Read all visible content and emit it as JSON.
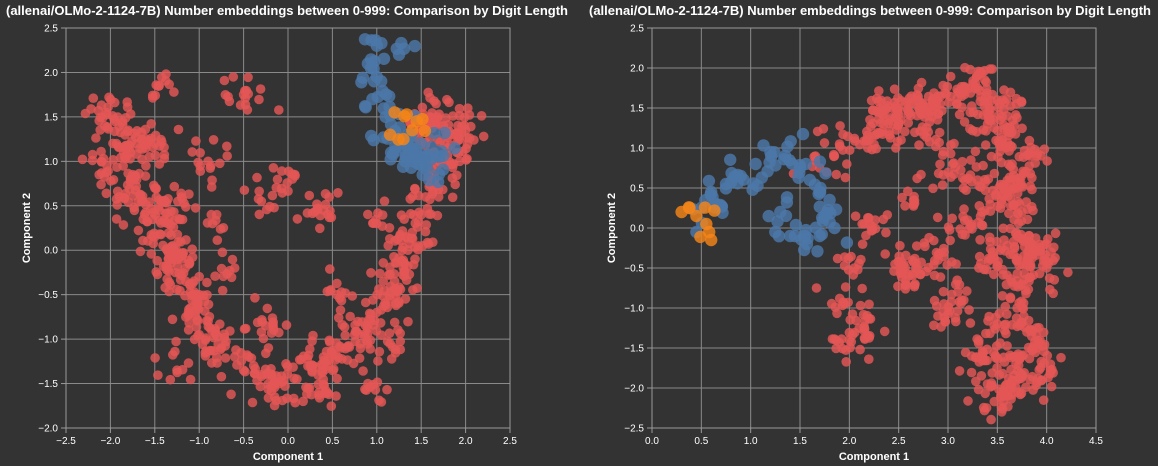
{
  "chart_data": [
    {
      "type": "scatter",
      "title": "(allenai/OLMo-2-1124-7B) Number embeddings between 0-999: Comparison by Digit Length",
      "xlabel": "Component 1",
      "ylabel": "Component 2",
      "xlim": [
        -2.5,
        2.5
      ],
      "ylim": [
        -2.0,
        2.5
      ],
      "xticks": [
        "−2.5",
        "−2.0",
        "−1.5",
        "−1.0",
        "−0.5",
        "0.0",
        "0.5",
        "1.0",
        "1.5",
        "2.0",
        "2.5"
      ],
      "yticks": [
        "−2.0",
        "−1.5",
        "−1.0",
        "−0.5",
        "0.0",
        "0.5",
        "1.0",
        "1.5",
        "2.0",
        "2.5"
      ],
      "grid": true,
      "series": [
        {
          "color": "#e45756",
          "count": 900,
          "points": [
            [
              -2.05,
              1.55
            ],
            [
              -1.95,
              1.45
            ],
            [
              -1.8,
              1.35
            ],
            [
              -1.7,
              1.2
            ],
            [
              -1.85,
              1.1
            ],
            [
              -1.6,
              0.95
            ],
            [
              -1.75,
              0.85
            ],
            [
              -1.5,
              0.7
            ],
            [
              -1.65,
              0.55
            ],
            [
              -1.45,
              0.45
            ],
            [
              -1.35,
              0.3
            ],
            [
              -1.5,
              0.15
            ],
            [
              -1.3,
              0.05
            ],
            [
              -1.2,
              -0.1
            ],
            [
              -1.35,
              -0.2
            ],
            [
              -1.15,
              -0.35
            ],
            [
              -1.0,
              -0.5
            ],
            [
              -1.1,
              -0.65
            ],
            [
              -0.9,
              -0.8
            ],
            [
              -1.0,
              -0.95
            ],
            [
              -0.75,
              -1.1
            ],
            [
              -0.6,
              -1.2
            ],
            [
              -0.5,
              -1.35
            ],
            [
              -0.3,
              -1.4
            ],
            [
              -0.1,
              -1.5
            ],
            [
              0.1,
              -1.45
            ],
            [
              0.25,
              -1.3
            ],
            [
              0.4,
              -1.2
            ],
            [
              0.6,
              -1.1
            ],
            [
              0.75,
              -0.95
            ],
            [
              0.9,
              -0.85
            ],
            [
              1.0,
              -0.7
            ],
            [
              1.15,
              -0.55
            ],
            [
              1.2,
              -0.35
            ],
            [
              1.3,
              -0.2
            ],
            [
              1.35,
              0.0
            ],
            [
              1.4,
              0.2
            ],
            [
              1.5,
              0.4
            ],
            [
              1.55,
              0.6
            ],
            [
              1.65,
              0.8
            ],
            [
              1.7,
              1.0
            ],
            [
              1.8,
              1.15
            ],
            [
              1.85,
              1.3
            ],
            [
              1.75,
              1.4
            ],
            [
              1.6,
              1.5
            ],
            [
              1.5,
              1.35
            ],
            [
              0.05,
              0.8
            ],
            [
              -0.3,
              0.55
            ],
            [
              -0.5,
              1.75
            ],
            [
              -1.45,
              1.85
            ],
            [
              -1.5,
              1.2
            ],
            [
              -0.9,
              1.0
            ],
            [
              0.4,
              0.45
            ],
            [
              -0.25,
              -0.85
            ],
            [
              0.55,
              -0.5
            ],
            [
              1.15,
              -1.05
            ],
            [
              -0.6,
              -0.2
            ],
            [
              -1.25,
              -1.35
            ],
            [
              0.9,
              -1.5
            ],
            [
              -0.85,
              0.3
            ],
            [
              1.0,
              0.3
            ],
            [
              2.0,
              1.35
            ],
            [
              1.9,
              1.1
            ],
            [
              -2.1,
              1.0
            ],
            [
              -1.9,
              0.6
            ],
            [
              -1.2,
              0.6
            ],
            [
              -0.15,
              -1.65
            ],
            [
              0.35,
              -1.6
            ]
          ]
        },
        {
          "color": "#4c78a8",
          "count": 90,
          "points": [
            [
              1.0,
              2.3
            ],
            [
              0.9,
              2.1
            ],
            [
              1.05,
              1.9
            ],
            [
              0.95,
              1.7
            ],
            [
              1.1,
              1.5
            ],
            [
              1.2,
              1.3
            ],
            [
              1.3,
              1.15
            ],
            [
              1.4,
              1.0
            ],
            [
              1.55,
              0.95
            ],
            [
              1.5,
              1.2
            ],
            [
              1.35,
              1.3
            ],
            [
              1.7,
              1.05
            ],
            [
              1.25,
              2.2
            ]
          ]
        },
        {
          "color": "#f58518",
          "count": 10,
          "points": [
            [
              1.15,
              1.3
            ],
            [
              1.3,
              1.25
            ],
            [
              1.4,
              1.35
            ],
            [
              1.45,
              1.45
            ],
            [
              1.2,
              1.55
            ]
          ]
        }
      ]
    },
    {
      "type": "scatter",
      "title": "(allenai/OLMo-2-1124-7B) Number embeddings between 0-999: Comparison by Digit Length",
      "xlabel": "Component 1",
      "ylabel": "Component 2",
      "xlim": [
        0.0,
        4.5
      ],
      "ylim": [
        -2.5,
        2.5
      ],
      "xticks": [
        "0.0",
        "0.5",
        "1.0",
        "1.5",
        "2.0",
        "2.5",
        "3.0",
        "3.5",
        "4.0",
        "4.5"
      ],
      "yticks": [
        "−2.5",
        "−2.0",
        "−1.5",
        "−1.0",
        "−0.5",
        "0.0",
        "0.5",
        "1.0",
        "1.5",
        "2.0",
        "2.5"
      ],
      "grid": true,
      "series": [
        {
          "color": "#e45756",
          "count": 900,
          "points": [
            [
              2.35,
              1.3
            ],
            [
              2.5,
              1.5
            ],
            [
              2.7,
              1.6
            ],
            [
              2.9,
              1.65
            ],
            [
              3.1,
              1.7
            ],
            [
              3.3,
              1.75
            ],
            [
              3.5,
              1.6
            ],
            [
              3.6,
              1.4
            ],
            [
              3.55,
              1.1
            ],
            [
              3.65,
              0.8
            ],
            [
              3.7,
              0.5
            ],
            [
              3.75,
              0.2
            ],
            [
              3.7,
              -0.1
            ],
            [
              3.8,
              -0.4
            ],
            [
              3.75,
              -0.7
            ],
            [
              3.7,
              -1.0
            ],
            [
              3.8,
              -1.3
            ],
            [
              3.75,
              -1.6
            ],
            [
              3.7,
              -1.9
            ],
            [
              3.6,
              -2.1
            ],
            [
              3.9,
              -1.5
            ],
            [
              3.85,
              -0.2
            ],
            [
              3.55,
              0.4
            ],
            [
              3.4,
              1.3
            ],
            [
              2.8,
              1.2
            ],
            [
              2.2,
              1.1
            ],
            [
              1.9,
              1.05
            ],
            [
              1.7,
              0.75
            ],
            [
              2.05,
              -0.5
            ],
            [
              2.1,
              -1.25
            ],
            [
              2.0,
              -1.4
            ],
            [
              1.95,
              -0.95
            ],
            [
              2.6,
              -0.6
            ],
            [
              2.9,
              -0.4
            ],
            [
              3.1,
              -0.8
            ],
            [
              3.2,
              0.1
            ],
            [
              3.05,
              0.8
            ],
            [
              2.65,
              0.35
            ],
            [
              3.35,
              -1.6
            ],
            [
              3.4,
              -1.95
            ],
            [
              3.45,
              -0.3
            ],
            [
              3.3,
              0.6
            ],
            [
              3.9,
              0.9
            ],
            [
              4.0,
              -0.5
            ],
            [
              3.95,
              -1.9
            ],
            [
              3.5,
              -1.2
            ],
            [
              2.55,
              -0.45
            ],
            [
              2.95,
              -1.05
            ],
            [
              2.15,
              0.05
            ],
            [
              2.4,
              1.35
            ],
            [
              2.75,
              1.5
            ]
          ]
        },
        {
          "color": "#4c78a8",
          "count": 90,
          "points": [
            [
              0.5,
              0.25
            ],
            [
              0.6,
              0.45
            ],
            [
              0.75,
              0.55
            ],
            [
              0.9,
              0.65
            ],
            [
              1.05,
              0.8
            ],
            [
              1.2,
              0.95
            ],
            [
              1.35,
              0.9
            ],
            [
              1.5,
              0.75
            ],
            [
              1.6,
              0.6
            ],
            [
              1.7,
              0.45
            ],
            [
              1.8,
              0.35
            ],
            [
              1.75,
              0.15
            ],
            [
              1.85,
              0.0
            ],
            [
              1.7,
              -0.1
            ],
            [
              1.55,
              -0.1
            ],
            [
              1.4,
              -0.1
            ],
            [
              1.25,
              -0.05
            ],
            [
              1.3,
              0.2
            ],
            [
              0.45,
              -0.05
            ],
            [
              0.65,
              0.3
            ]
          ]
        },
        {
          "color": "#f58518",
          "count": 10,
          "points": [
            [
              0.3,
              0.2
            ],
            [
              0.38,
              0.25
            ],
            [
              0.45,
              0.15
            ],
            [
              0.55,
              0.05
            ],
            [
              0.58,
              -0.05
            ],
            [
              0.6,
              -0.15
            ]
          ]
        }
      ]
    }
  ]
}
